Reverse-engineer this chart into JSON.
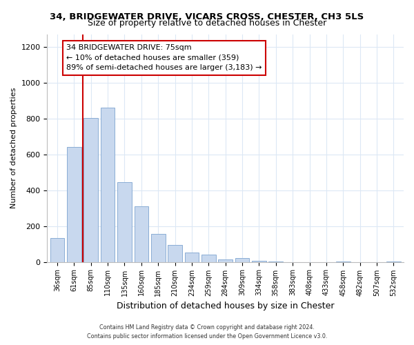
{
  "title": "34, BRIDGEWATER DRIVE, VICARS CROSS, CHESTER, CH3 5LS",
  "subtitle": "Size of property relative to detached houses in Chester",
  "xlabel": "Distribution of detached houses by size in Chester",
  "ylabel": "Number of detached properties",
  "bar_color": "#c8d8ee",
  "bar_edge_color": "#8aadd4",
  "categories": [
    "36sqm",
    "61sqm",
    "85sqm",
    "110sqm",
    "135sqm",
    "160sqm",
    "185sqm",
    "210sqm",
    "234sqm",
    "259sqm",
    "284sqm",
    "309sqm",
    "334sqm",
    "358sqm",
    "383sqm",
    "408sqm",
    "433sqm",
    "458sqm",
    "482sqm",
    "507sqm",
    "532sqm"
  ],
  "values": [
    135,
    640,
    805,
    860,
    445,
    310,
    158,
    95,
    52,
    42,
    15,
    20,
    5,
    3,
    0,
    0,
    0,
    3,
    0,
    0,
    3
  ],
  "vline_pos": 1.5,
  "vline_color": "#cc0000",
  "annotation_line1": "34 BRIDGEWATER DRIVE: 75sqm",
  "annotation_line2": "← 10% of detached houses are smaller (359)",
  "annotation_line3": "89% of semi-detached houses are larger (3,183) →",
  "annotation_box_color": "#ffffff",
  "annotation_box_edge": "#cc0000",
  "ylim": [
    0,
    1270
  ],
  "yticks": [
    0,
    200,
    400,
    600,
    800,
    1000,
    1200
  ],
  "footnote1": "Contains HM Land Registry data © Crown copyright and database right 2024.",
  "footnote2": "Contains public sector information licensed under the Open Government Licence v3.0.",
  "background_color": "#ffffff",
  "plot_bg_color": "#ffffff",
  "grid_color": "#dce8f5"
}
